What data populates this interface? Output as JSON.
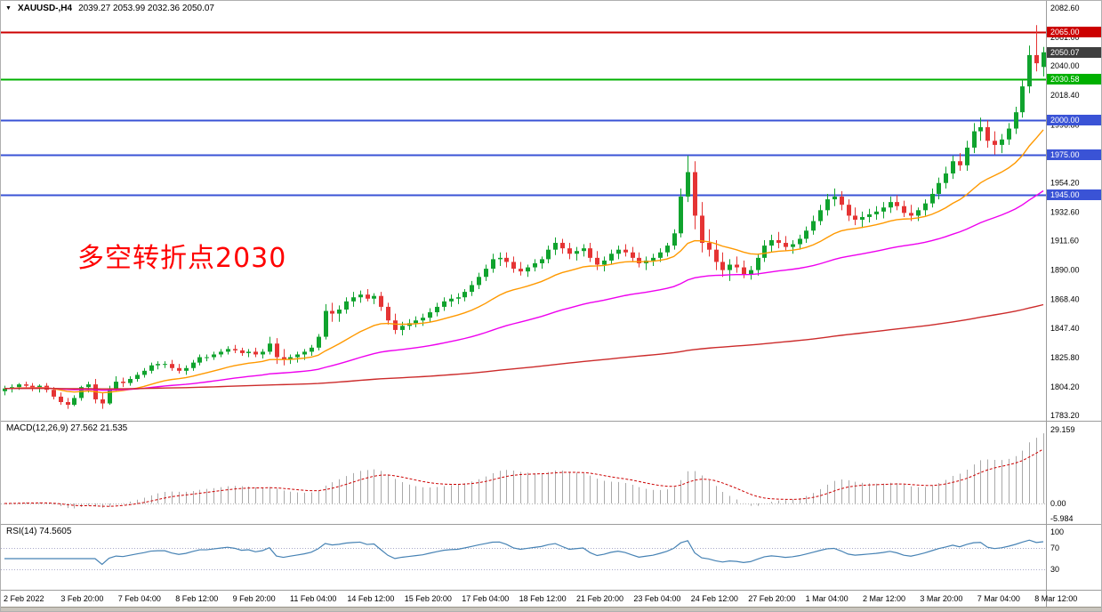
{
  "header": {
    "collapse_icon": "▼",
    "symbol_period": "XAUUSD-,H4",
    "ohlc_values": "2039.27 2053.99 2032.36 2050.07"
  },
  "main_chart": {
    "annotation": {
      "text": "多空转折点2030",
      "color": "#FF0000"
    },
    "price_axis_ticks": [
      {
        "v": 2082.6,
        "t": "2082.60"
      },
      {
        "v": 2061.0,
        "t": "2061.00"
      },
      {
        "v": 2040.0,
        "t": "2040.00"
      },
      {
        "v": 2018.4,
        "t": "2018.40"
      },
      {
        "v": 1996.8,
        "t": "1996.80"
      },
      {
        "v": 1975.2,
        "t": "1975.20"
      },
      {
        "v": 1954.2,
        "t": "1954.20"
      },
      {
        "v": 1932.6,
        "t": "1932.60"
      },
      {
        "v": 1911.6,
        "t": "1911.60"
      },
      {
        "v": 1890.0,
        "t": "1890.00"
      },
      {
        "v": 1868.4,
        "t": "1868.40"
      },
      {
        "v": 1847.4,
        "t": "1847.40"
      },
      {
        "v": 1825.8,
        "t": "1825.80"
      },
      {
        "v": 1804.2,
        "t": "1804.20"
      },
      {
        "v": 1783.2,
        "t": "1783.20"
      }
    ],
    "current_price": {
      "value": 2050.07,
      "label": "2050.07",
      "badge_color": "#3F3F3F"
    }
  },
  "indicators": {
    "macd": {
      "label": "MACD(12,26,9) 27.562 21.535",
      "params": [
        12,
        26,
        9
      ],
      "values": [
        27.562,
        21.535
      ],
      "ticks": [
        {
          "v": 29.159,
          "t": "29.159"
        },
        {
          "v": 0,
          "t": "0.00"
        },
        {
          "v": -5.984,
          "t": "-5.984"
        }
      ],
      "ylim": [
        -5.984,
        29.159
      ],
      "histogram_color": "#A9A9A9",
      "signal_color": "#CC0000"
    },
    "rsi": {
      "label": "RSI(14) 74.5605",
      "period": 14,
      "value": 74.5605,
      "ticks": [
        {
          "v": 100,
          "t": "100"
        },
        {
          "v": 70,
          "t": "70"
        },
        {
          "v": 30,
          "t": "30"
        }
      ],
      "levels": [
        70,
        30
      ],
      "level_color": "#A9A9C9",
      "line_color": "#4682B4",
      "ylim": [
        0,
        100
      ]
    }
  },
  "time_axis": {
    "labels": [
      "2 Feb 2022",
      "3 Feb 20:00",
      "7 Feb 04:00",
      "8 Feb 12:00",
      "9 Feb 20:00",
      "11 Feb 04:00",
      "14 Feb 12:00",
      "15 Feb 20:00",
      "17 Feb 04:00",
      "18 Feb 12:00",
      "21 Feb 20:00",
      "23 Feb 04:00",
      "24 Feb 12:00",
      "27 Feb 20:00",
      "1 Mar 04:00",
      "2 Mar 12:00",
      "3 Mar 20:00",
      "7 Mar 04:00",
      "8 Mar 12:00"
    ]
  },
  "chart_data": {
    "type": "candlestick",
    "symbol": "XAUUSD-",
    "timeframe": "H4",
    "title": "XAUUSD-,H4 2039.27 2053.99 2032.36 2050.07",
    "ylim": [
      1783.2,
      2082.6
    ],
    "up_color": "#10A32E",
    "down_color": "#E53434",
    "hlines": [
      {
        "price": 2065.0,
        "label": "2065.00",
        "color": "#CC0000"
      },
      {
        "price": 2030.58,
        "label": "2030.58",
        "color": "#00B000"
      },
      {
        "price": 2000.0,
        "label": "2000.00",
        "color": "#3A53D6"
      },
      {
        "price": 1975.0,
        "label": "1975.00",
        "color": "#3A53D6"
      },
      {
        "price": 1945.0,
        "label": "1945.00",
        "color": "#3A53D6"
      }
    ],
    "moving_averages": [
      {
        "period": 20,
        "method": "ema",
        "color": "#FF9900"
      },
      {
        "period": 60,
        "method": "ema",
        "color": "#EE00EE"
      },
      {
        "period": 300,
        "method": "ema",
        "color": "#CC2B2B"
      }
    ],
    "sub_charts": [
      {
        "type": "macd_histogram",
        "label": "MACD(12,26,9)",
        "current_values": [
          27.562,
          21.535
        ],
        "ylim": [
          -5.984,
          29.159
        ]
      },
      {
        "type": "line",
        "label": "RSI(14)",
        "current_value": 74.5605,
        "ylim": [
          0,
          100
        ],
        "levels": [
          70,
          30
        ]
      }
    ],
    "ohlc": [
      [
        1801,
        1805,
        1798,
        1803
      ],
      [
        1803,
        1806,
        1800,
        1804
      ],
      [
        1804,
        1807,
        1802,
        1806
      ],
      [
        1806,
        1808,
        1803,
        1805
      ],
      [
        1805,
        1807,
        1801,
        1803
      ],
      [
        1803,
        1806,
        1800,
        1805
      ],
      [
        1805,
        1807,
        1800,
        1802
      ],
      [
        1802,
        1804,
        1795,
        1797
      ],
      [
        1797,
        1800,
        1791,
        1793
      ],
      [
        1793,
        1796,
        1788,
        1791
      ],
      [
        1791,
        1798,
        1790,
        1796
      ],
      [
        1796,
        1805,
        1794,
        1804
      ],
      [
        1804,
        1808,
        1800,
        1806
      ],
      [
        1806,
        1810,
        1792,
        1795
      ],
      [
        1795,
        1800,
        1788,
        1792
      ],
      [
        1792,
        1805,
        1791,
        1803
      ],
      [
        1803,
        1812,
        1801,
        1808
      ],
      [
        1808,
        1811,
        1804,
        1807
      ],
      [
        1807,
        1812,
        1805,
        1810
      ],
      [
        1810,
        1815,
        1808,
        1813
      ],
      [
        1813,
        1818,
        1811,
        1816
      ],
      [
        1816,
        1822,
        1814,
        1820
      ],
      [
        1820,
        1823,
        1817,
        1821
      ],
      [
        1821,
        1823,
        1818,
        1821
      ],
      [
        1821,
        1824,
        1816,
        1818
      ],
      [
        1818,
        1821,
        1814,
        1816
      ],
      [
        1816,
        1820,
        1813,
        1818
      ],
      [
        1818,
        1824,
        1816,
        1822
      ],
      [
        1822,
        1828,
        1820,
        1826
      ],
      [
        1826,
        1828,
        1823,
        1826
      ],
      [
        1826,
        1830,
        1824,
        1828
      ],
      [
        1828,
        1832,
        1826,
        1830
      ],
      [
        1830,
        1834,
        1828,
        1832
      ],
      [
        1832,
        1835,
        1829,
        1831
      ],
      [
        1831,
        1833,
        1827,
        1829
      ],
      [
        1829,
        1832,
        1826,
        1830
      ],
      [
        1830,
        1833,
        1826,
        1828
      ],
      [
        1828,
        1832,
        1825,
        1830
      ],
      [
        1830,
        1841,
        1828,
        1836
      ],
      [
        1836,
        1840,
        1821,
        1826
      ],
      [
        1826,
        1832,
        1820,
        1824
      ],
      [
        1824,
        1828,
        1821,
        1826
      ],
      [
        1826,
        1830,
        1822,
        1828
      ],
      [
        1828,
        1832,
        1824,
        1830
      ],
      [
        1830,
        1835,
        1827,
        1833
      ],
      [
        1833,
        1843,
        1831,
        1841
      ],
      [
        1841,
        1865,
        1839,
        1860
      ],
      [
        1860,
        1866,
        1852,
        1858
      ],
      [
        1858,
        1864,
        1852,
        1861
      ],
      [
        1861,
        1870,
        1858,
        1867
      ],
      [
        1867,
        1874,
        1863,
        1870
      ],
      [
        1870,
        1875,
        1866,
        1872
      ],
      [
        1872,
        1876,
        1867,
        1869
      ],
      [
        1869,
        1873,
        1865,
        1871
      ],
      [
        1871,
        1874,
        1860,
        1863
      ],
      [
        1863,
        1866,
        1850,
        1853
      ],
      [
        1853,
        1858,
        1843,
        1846
      ],
      [
        1846,
        1852,
        1842,
        1849
      ],
      [
        1849,
        1854,
        1846,
        1851
      ],
      [
        1851,
        1856,
        1848,
        1853
      ],
      [
        1853,
        1858,
        1849,
        1855
      ],
      [
        1855,
        1862,
        1852,
        1859
      ],
      [
        1859,
        1866,
        1856,
        1863
      ],
      [
        1863,
        1870,
        1860,
        1867
      ],
      [
        1867,
        1872,
        1863,
        1869
      ],
      [
        1869,
        1873,
        1865,
        1870
      ],
      [
        1870,
        1876,
        1867,
        1874
      ],
      [
        1874,
        1882,
        1871,
        1879
      ],
      [
        1879,
        1888,
        1876,
        1885
      ],
      [
        1885,
        1894,
        1882,
        1891
      ],
      [
        1891,
        1902,
        1888,
        1898
      ],
      [
        1898,
        1903,
        1893,
        1899
      ],
      [
        1899,
        1903,
        1892,
        1896
      ],
      [
        1896,
        1900,
        1888,
        1891
      ],
      [
        1891,
        1896,
        1886,
        1889
      ],
      [
        1889,
        1894,
        1885,
        1892
      ],
      [
        1892,
        1898,
        1889,
        1895
      ],
      [
        1895,
        1900,
        1891,
        1898
      ],
      [
        1898,
        1908,
        1895,
        1905
      ],
      [
        1905,
        1914,
        1901,
        1910
      ],
      [
        1910,
        1913,
        1902,
        1906
      ],
      [
        1906,
        1910,
        1898,
        1902
      ],
      [
        1902,
        1907,
        1897,
        1904
      ],
      [
        1904,
        1909,
        1900,
        1906
      ],
      [
        1906,
        1910,
        1896,
        1899
      ],
      [
        1899,
        1904,
        1890,
        1894
      ],
      [
        1894,
        1900,
        1889,
        1897
      ],
      [
        1897,
        1905,
        1894,
        1902
      ],
      [
        1902,
        1908,
        1898,
        1905
      ],
      [
        1905,
        1909,
        1900,
        1903
      ],
      [
        1903,
        1907,
        1896,
        1899
      ],
      [
        1899,
        1903,
        1892,
        1895
      ],
      [
        1895,
        1900,
        1890,
        1897
      ],
      [
        1897,
        1902,
        1893,
        1899
      ],
      [
        1899,
        1906,
        1896,
        1903
      ],
      [
        1903,
        1910,
        1900,
        1908
      ],
      [
        1908,
        1920,
        1905,
        1917
      ],
      [
        1917,
        1950,
        1914,
        1944
      ],
      [
        1944,
        1974,
        1940,
        1962
      ],
      [
        1962,
        1970,
        1920,
        1930
      ],
      [
        1930,
        1940,
        1903,
        1910
      ],
      [
        1910,
        1920,
        1900,
        1905
      ],
      [
        1905,
        1912,
        1890,
        1896
      ],
      [
        1896,
        1903,
        1885,
        1890
      ],
      [
        1890,
        1898,
        1882,
        1894
      ],
      [
        1894,
        1900,
        1888,
        1892
      ],
      [
        1892,
        1897,
        1884,
        1887
      ],
      [
        1887,
        1893,
        1883,
        1890
      ],
      [
        1890,
        1902,
        1886,
        1899
      ],
      [
        1899,
        1912,
        1896,
        1908
      ],
      [
        1908,
        1916,
        1903,
        1912
      ],
      [
        1912,
        1918,
        1906,
        1910
      ],
      [
        1910,
        1915,
        1904,
        1907
      ],
      [
        1907,
        1912,
        1902,
        1909
      ],
      [
        1909,
        1916,
        1905,
        1913
      ],
      [
        1913,
        1922,
        1910,
        1919
      ],
      [
        1919,
        1930,
        1916,
        1926
      ],
      [
        1926,
        1938,
        1923,
        1934
      ],
      [
        1934,
        1946,
        1930,
        1942
      ],
      [
        1942,
        1950,
        1937,
        1944
      ],
      [
        1944,
        1948,
        1934,
        1938
      ],
      [
        1938,
        1942,
        1926,
        1930
      ],
      [
        1930,
        1936,
        1923,
        1927
      ],
      [
        1927,
        1933,
        1921,
        1929
      ],
      [
        1929,
        1935,
        1925,
        1931
      ],
      [
        1931,
        1937,
        1927,
        1933
      ],
      [
        1933,
        1940,
        1928,
        1936
      ],
      [
        1936,
        1944,
        1932,
        1940
      ],
      [
        1940,
        1945,
        1934,
        1937
      ],
      [
        1937,
        1941,
        1929,
        1932
      ],
      [
        1932,
        1938,
        1926,
        1930
      ],
      [
        1930,
        1936,
        1926,
        1934
      ],
      [
        1934,
        1942,
        1930,
        1939
      ],
      [
        1939,
        1950,
        1936,
        1946
      ],
      [
        1946,
        1958,
        1942,
        1954
      ],
      [
        1954,
        1966,
        1950,
        1961
      ],
      [
        1961,
        1974,
        1957,
        1970
      ],
      [
        1970,
        1976,
        1963,
        1967
      ],
      [
        1967,
        1985,
        1963,
        1980
      ],
      [
        1980,
        1998,
        1976,
        1992
      ],
      [
        1992,
        2002,
        1985,
        1995
      ],
      [
        1995,
        2000,
        1980,
        1985
      ],
      [
        1985,
        1992,
        1975,
        1982
      ],
      [
        1982,
        1990,
        1976,
        1986
      ],
      [
        1986,
        1998,
        1982,
        1994
      ],
      [
        1994,
        2010,
        1990,
        2006
      ],
      [
        2006,
        2030,
        2002,
        2025
      ],
      [
        2025,
        2055,
        2020,
        2048
      ],
      [
        2048,
        2070,
        2036,
        2042
      ],
      [
        2039.27,
        2053.99,
        2032.36,
        2050.07
      ]
    ]
  }
}
